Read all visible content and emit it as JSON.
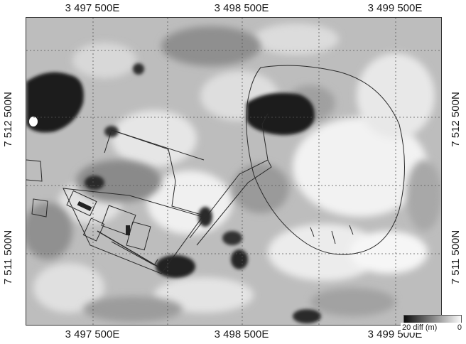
{
  "axes": {
    "top_ticks": [
      "3 497 500E",
      "3 498 500E",
      "3 499 500E"
    ],
    "bottom_ticks": [
      "3 497 500E",
      "3 498 500E",
      "3 499 500E"
    ],
    "left_ticks": [
      "7 512 500N",
      "7 511 500N"
    ],
    "right_ticks": [
      "7 512 500N",
      "7 511 500N"
    ]
  },
  "legend": {
    "min_label": "20",
    "unit_label": "diff (m)",
    "max_label": "0",
    "color_low": "#0d0d0d",
    "color_high": "#fafafa"
  },
  "grid": {
    "visible": true,
    "style": "dotted"
  }
}
